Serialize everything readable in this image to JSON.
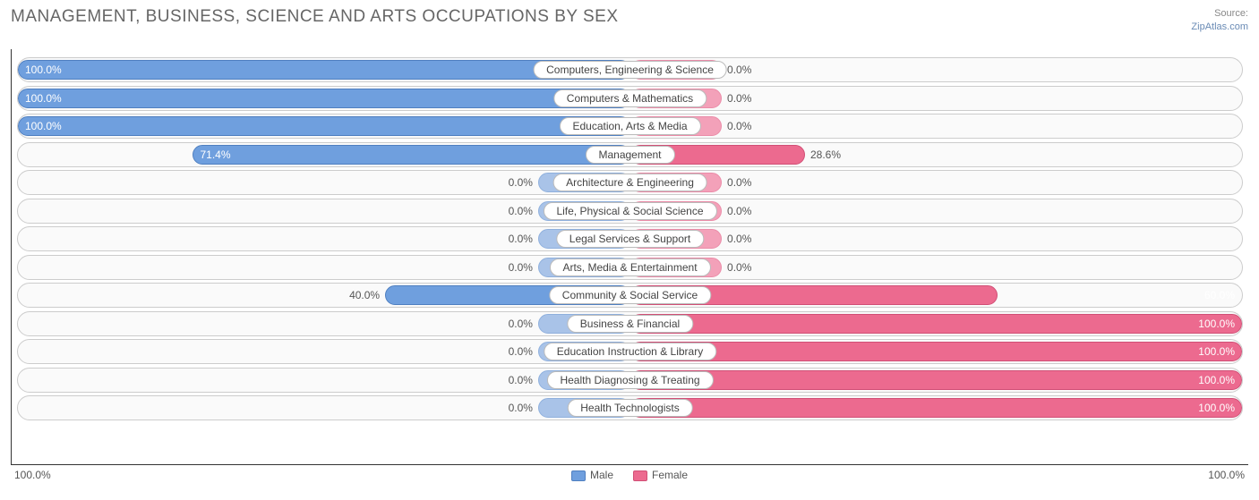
{
  "title": "MANAGEMENT, BUSINESS, SCIENCE AND ARTS OCCUPATIONS BY SEX",
  "source_label": "Source:",
  "source_site": "ZipAtlas.com",
  "chart": {
    "type": "diverging-bar",
    "male_color": "#6f9fde",
    "male_border": "#4f7fc0",
    "male_faded": "#a9c3e8",
    "male_faded_border": "#8fb0dd",
    "female_color": "#ec6a8f",
    "female_border": "#d14f76",
    "female_faded": "#f3a1b9",
    "female_faded_border": "#eb8ca8",
    "track_bg": "#fafafa",
    "track_border": "#cccccc",
    "axis_color": "#333333",
    "label_bg": "#ffffff",
    "label_border": "#bbbbbb",
    "text_color": "#555555",
    "min_bar_pct": 15,
    "rows": [
      {
        "label": "Computers, Engineering & Science",
        "male": 100.0,
        "female": 0.0
      },
      {
        "label": "Computers & Mathematics",
        "male": 100.0,
        "female": 0.0
      },
      {
        "label": "Education, Arts & Media",
        "male": 100.0,
        "female": 0.0
      },
      {
        "label": "Management",
        "male": 71.4,
        "female": 28.6
      },
      {
        "label": "Architecture & Engineering",
        "male": 0.0,
        "female": 0.0
      },
      {
        "label": "Life, Physical & Social Science",
        "male": 0.0,
        "female": 0.0
      },
      {
        "label": "Legal Services & Support",
        "male": 0.0,
        "female": 0.0
      },
      {
        "label": "Arts, Media & Entertainment",
        "male": 0.0,
        "female": 0.0
      },
      {
        "label": "Community & Social Service",
        "male": 40.0,
        "female": 60.0
      },
      {
        "label": "Business & Financial",
        "male": 0.0,
        "female": 100.0
      },
      {
        "label": "Education Instruction & Library",
        "male": 0.0,
        "female": 100.0
      },
      {
        "label": "Health Diagnosing & Treating",
        "male": 0.0,
        "female": 100.0
      },
      {
        "label": "Health Technologists",
        "male": 0.0,
        "female": 100.0
      }
    ],
    "axis_left": "100.0%",
    "axis_right": "100.0%",
    "legend": [
      {
        "label": "Male",
        "color_key": "male"
      },
      {
        "label": "Female",
        "color_key": "female"
      }
    ]
  }
}
